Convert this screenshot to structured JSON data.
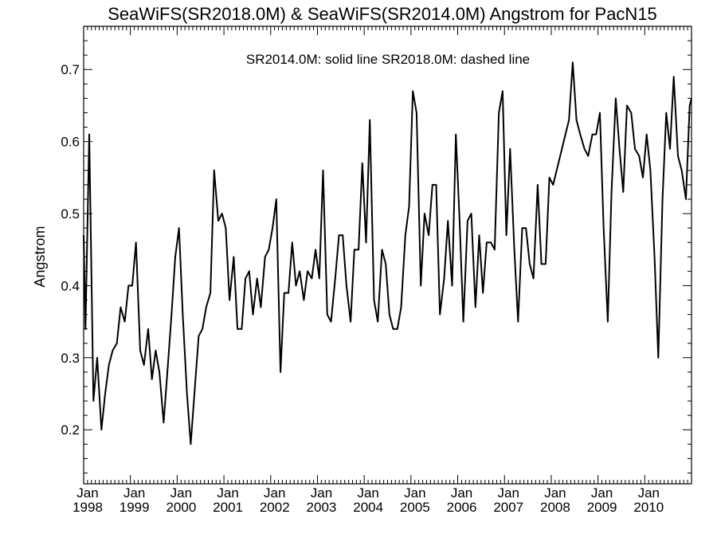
{
  "chart_data": {
    "type": "line",
    "title": "SeaWiFS(SR2018.0M) & SeaWiFS(SR2014.0M)  Angstrom for PacN15",
    "annotation": "SR2014.0M: solid line   SR2018.0M: dashed line",
    "ylabel": "Angstrom",
    "xlabel": "",
    "xlim": [
      1998.0,
      2011.0
    ],
    "ylim": [
      0.125,
      0.76
    ],
    "y_ticks": [
      0.2,
      0.3,
      0.4,
      0.5,
      0.6,
      0.7
    ],
    "y_tick_labels": [
      "0.2",
      "0.3",
      "0.4",
      "0.5",
      "0.6",
      "0.7"
    ],
    "x_ticks": [
      1998,
      1999,
      2000,
      2001,
      2002,
      2003,
      2004,
      2005,
      2006,
      2007,
      2008,
      2009,
      2010
    ],
    "x_tick_month": "Jan",
    "x_tick_years": [
      "1998",
      "1999",
      "2000",
      "2001",
      "2002",
      "2003",
      "2004",
      "2005",
      "2006",
      "2007",
      "2008",
      "2009",
      "2010"
    ],
    "grid": false,
    "series": [
      {
        "line_style": "solid",
        "color": "#000000",
        "points": [
          [
            1998.0,
            0.47
          ],
          [
            1998.04,
            0.34
          ],
          [
            1998.12,
            0.61
          ],
          [
            1998.21,
            0.24
          ],
          [
            1998.29,
            0.3
          ],
          [
            1998.38,
            0.2
          ],
          [
            1998.46,
            0.25
          ],
          [
            1998.54,
            0.29
          ],
          [
            1998.62,
            0.31
          ],
          [
            1998.71,
            0.32
          ],
          [
            1998.79,
            0.37
          ],
          [
            1998.88,
            0.35
          ],
          [
            1998.96,
            0.4
          ],
          [
            1999.04,
            0.4
          ],
          [
            1999.12,
            0.46
          ],
          [
            1999.21,
            0.31
          ],
          [
            1999.29,
            0.29
          ],
          [
            1999.38,
            0.34
          ],
          [
            1999.46,
            0.27
          ],
          [
            1999.54,
            0.31
          ],
          [
            1999.62,
            0.28
          ],
          [
            1999.71,
            0.21
          ],
          [
            1999.79,
            0.28
          ],
          [
            1999.88,
            0.36
          ],
          [
            1999.96,
            0.44
          ],
          [
            2000.04,
            0.48
          ],
          [
            2000.12,
            0.36
          ],
          [
            2000.21,
            0.25
          ],
          [
            2000.29,
            0.18
          ],
          [
            2000.38,
            0.26
          ],
          [
            2000.46,
            0.33
          ],
          [
            2000.54,
            0.34
          ],
          [
            2000.62,
            0.37
          ],
          [
            2000.71,
            0.39
          ],
          [
            2000.79,
            0.56
          ],
          [
            2000.88,
            0.49
          ],
          [
            2000.96,
            0.5
          ],
          [
            2001.04,
            0.48
          ],
          [
            2001.12,
            0.38
          ],
          [
            2001.21,
            0.44
          ],
          [
            2001.29,
            0.34
          ],
          [
            2001.38,
            0.34
          ],
          [
            2001.46,
            0.41
          ],
          [
            2001.54,
            0.42
          ],
          [
            2001.62,
            0.36
          ],
          [
            2001.71,
            0.41
          ],
          [
            2001.79,
            0.37
          ],
          [
            2001.88,
            0.44
          ],
          [
            2001.96,
            0.45
          ],
          [
            2002.04,
            0.48
          ],
          [
            2002.12,
            0.52
          ],
          [
            2002.21,
            0.28
          ],
          [
            2002.29,
            0.39
          ],
          [
            2002.38,
            0.39
          ],
          [
            2002.46,
            0.46
          ],
          [
            2002.54,
            0.4
          ],
          [
            2002.62,
            0.42
          ],
          [
            2002.71,
            0.38
          ],
          [
            2002.79,
            0.42
          ],
          [
            2002.88,
            0.41
          ],
          [
            2002.96,
            0.45
          ],
          [
            2003.04,
            0.41
          ],
          [
            2003.12,
            0.56
          ],
          [
            2003.21,
            0.36
          ],
          [
            2003.29,
            0.35
          ],
          [
            2003.38,
            0.41
          ],
          [
            2003.46,
            0.47
          ],
          [
            2003.54,
            0.47
          ],
          [
            2003.62,
            0.4
          ],
          [
            2003.71,
            0.35
          ],
          [
            2003.79,
            0.45
          ],
          [
            2003.88,
            0.45
          ],
          [
            2003.96,
            0.57
          ],
          [
            2004.04,
            0.46
          ],
          [
            2004.12,
            0.63
          ],
          [
            2004.21,
            0.38
          ],
          [
            2004.29,
            0.35
          ],
          [
            2004.38,
            0.45
          ],
          [
            2004.46,
            0.43
          ],
          [
            2004.54,
            0.36
          ],
          [
            2004.62,
            0.34
          ],
          [
            2004.71,
            0.34
          ],
          [
            2004.79,
            0.37
          ],
          [
            2004.88,
            0.47
          ],
          [
            2004.96,
            0.51
          ],
          [
            2005.04,
            0.67
          ],
          [
            2005.12,
            0.64
          ],
          [
            2005.21,
            0.4
          ],
          [
            2005.29,
            0.5
          ],
          [
            2005.38,
            0.47
          ],
          [
            2005.46,
            0.54
          ],
          [
            2005.54,
            0.54
          ],
          [
            2005.62,
            0.36
          ],
          [
            2005.71,
            0.41
          ],
          [
            2005.79,
            0.49
          ],
          [
            2005.88,
            0.4
          ],
          [
            2005.96,
            0.61
          ],
          [
            2006.04,
            0.49
          ],
          [
            2006.12,
            0.35
          ],
          [
            2006.21,
            0.49
          ],
          [
            2006.29,
            0.5
          ],
          [
            2006.38,
            0.37
          ],
          [
            2006.46,
            0.47
          ],
          [
            2006.54,
            0.39
          ],
          [
            2006.62,
            0.46
          ],
          [
            2006.71,
            0.46
          ],
          [
            2006.79,
            0.45
          ],
          [
            2006.88,
            0.64
          ],
          [
            2006.96,
            0.67
          ],
          [
            2007.04,
            0.47
          ],
          [
            2007.12,
            0.59
          ],
          [
            2007.21,
            0.45
          ],
          [
            2007.29,
            0.35
          ],
          [
            2007.38,
            0.48
          ],
          [
            2007.46,
            0.48
          ],
          [
            2007.54,
            0.43
          ],
          [
            2007.62,
            0.41
          ],
          [
            2007.71,
            0.54
          ],
          [
            2007.79,
            0.43
          ],
          [
            2007.88,
            0.43
          ],
          [
            2007.96,
            0.55
          ],
          [
            2008.04,
            0.54
          ],
          [
            2008.38,
            0.63
          ],
          [
            2008.46,
            0.71
          ],
          [
            2008.54,
            0.63
          ],
          [
            2008.62,
            0.61
          ],
          [
            2008.71,
            0.59
          ],
          [
            2008.79,
            0.58
          ],
          [
            2008.88,
            0.61
          ],
          [
            2008.96,
            0.61
          ],
          [
            2009.04,
            0.64
          ],
          [
            2009.12,
            0.48
          ],
          [
            2009.21,
            0.35
          ],
          [
            2009.29,
            0.53
          ],
          [
            2009.38,
            0.66
          ],
          [
            2009.46,
            0.59
          ],
          [
            2009.54,
            0.53
          ],
          [
            2009.62,
            0.65
          ],
          [
            2009.71,
            0.64
          ],
          [
            2009.79,
            0.59
          ],
          [
            2009.88,
            0.58
          ],
          [
            2009.96,
            0.55
          ],
          [
            2010.04,
            0.61
          ],
          [
            2010.12,
            0.56
          ],
          [
            2010.21,
            0.44
          ],
          [
            2010.29,
            0.3
          ],
          [
            2010.38,
            0.52
          ],
          [
            2010.46,
            0.64
          ],
          [
            2010.54,
            0.59
          ],
          [
            2010.62,
            0.69
          ],
          [
            2010.71,
            0.58
          ],
          [
            2010.79,
            0.56
          ],
          [
            2010.88,
            0.52
          ],
          [
            2010.96,
            0.65
          ],
          [
            2011.0,
            0.66
          ]
        ]
      }
    ]
  }
}
